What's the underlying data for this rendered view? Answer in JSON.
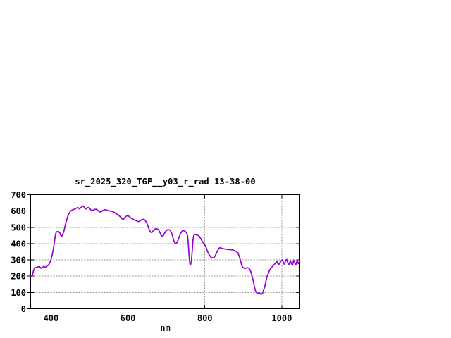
{
  "window": {
    "background": "#ffffff"
  },
  "chart": {
    "colors": {
      "line": "#9400D3",
      "grid": "#909090",
      "axis": "#000000",
      "text": "#000000",
      "background": "#ffffff"
    }
  },
  "chart_data": {
    "type": "line",
    "title": "sr_2025_320_TGF__y03_r_rad 13-38-00",
    "xlabel": "nm",
    "ylabel": "",
    "xlim": [
      347,
      1047
    ],
    "ylim": [
      0,
      700
    ],
    "xticks": [
      400,
      600,
      800,
      1000
    ],
    "yticks": [
      0,
      100,
      200,
      300,
      400,
      500,
      600,
      700
    ],
    "grid": true,
    "legend_position": "none",
    "series": [
      {
        "name": "sr_2025_320_TGF__y03_r_rad",
        "color": "#9400D3",
        "x": [
          347,
          350,
          352,
          355,
          358,
          362,
          366,
          370,
          374,
          378,
          381,
          384,
          387,
          391,
          394,
          397,
          400,
          403,
          406,
          408,
          410,
          412,
          414,
          417,
          420,
          423,
          425,
          428,
          431,
          434,
          437,
          440,
          443,
          446,
          450,
          454,
          458,
          462,
          466,
          470,
          474,
          478,
          481,
          484,
          487,
          490,
          494,
          498,
          502,
          506,
          510,
          514,
          518,
          522,
          526,
          530,
          534,
          538,
          542,
          546,
          550,
          554,
          558,
          562,
          566,
          570,
          574,
          578,
          582,
          585,
          588,
          591,
          594,
          597,
          600,
          604,
          608,
          612,
          616,
          620,
          624,
          628,
          632,
          636,
          640,
          644,
          648,
          652,
          656,
          659,
          662,
          665,
          668,
          671,
          674,
          677,
          680,
          683,
          686,
          689,
          692,
          695,
          698,
          701,
          704,
          707,
          710,
          713,
          716,
          719,
          722,
          725,
          728,
          731,
          734,
          737,
          740,
          743,
          746,
          749,
          752,
          755,
          757,
          759,
          761,
          763,
          765,
          767,
          769,
          771,
          774,
          777,
          780,
          783,
          786,
          789,
          792,
          795,
          798,
          801,
          804,
          807,
          810,
          813,
          816,
          819,
          822,
          825,
          828,
          831,
          834,
          837,
          840,
          843,
          846,
          850,
          854,
          858,
          862,
          866,
          870,
          874,
          878,
          882,
          886,
          890,
          893,
          896,
          899,
          902,
          905,
          908,
          911,
          914,
          917,
          920,
          923,
          926,
          929,
          932,
          935,
          938,
          941,
          944,
          947,
          950,
          953,
          956,
          959,
          962,
          965,
          968,
          971,
          974,
          977,
          980,
          983,
          985,
          988,
          990,
          992,
          995,
          998,
          1001,
          1004,
          1007,
          1010,
          1013,
          1016,
          1019,
          1022,
          1025,
          1028,
          1031,
          1034,
          1037,
          1040,
          1043,
          1047
        ],
        "y": [
          197,
          198,
          212,
          240,
          252,
          253,
          257,
          259,
          248,
          255,
          260,
          254,
          258,
          264,
          272,
          283,
          302,
          332,
          365,
          396,
          432,
          460,
          471,
          475,
          473,
          465,
          452,
          445,
          458,
          482,
          512,
          540,
          563,
          581,
          597,
          605,
          609,
          612,
          618,
          622,
          613,
          621,
          628,
          631,
          621,
          612,
          620,
          622,
          611,
          600,
          606,
          610,
          611,
          603,
          595,
          594,
          602,
          607,
          608,
          604,
          601,
          600,
          598,
          595,
          589,
          582,
          577,
          569,
          559,
          552,
          549,
          557,
          565,
          570,
          571,
          565,
          557,
          551,
          546,
          542,
          538,
          535,
          540,
          547,
          549,
          545,
          531,
          509,
          482,
          470,
          468,
          476,
          485,
          490,
          492,
          489,
          483,
          469,
          452,
          446,
          450,
          463,
          475,
          482,
          486,
          485,
          481,
          469,
          447,
          419,
          403,
          400,
          409,
          426,
          446,
          463,
          474,
          480,
          479,
          475,
          468,
          448,
          398,
          328,
          276,
          271,
          292,
          352,
          421,
          449,
          457,
          455,
          452,
          449,
          443,
          431,
          419,
          407,
          398,
          388,
          371,
          351,
          337,
          325,
          317,
          314,
          312,
          318,
          331,
          346,
          361,
          372,
          375,
          372,
          370,
          368,
          366,
          365,
          364,
          363,
          362,
          360,
          356,
          351,
          344,
          318,
          293,
          266,
          254,
          249,
          247,
          250,
          252,
          249,
          241,
          224,
          199,
          168,
          133,
          109,
          97,
          94,
          100,
          91,
          88,
          96,
          116,
          136,
          172,
          201,
          216,
          236,
          248,
          256,
          263,
          271,
          279,
          286,
          289,
          277,
          269,
          283,
          293,
          301,
          287,
          271,
          296,
          303,
          279,
          271,
          296,
          277,
          267,
          299,
          281,
          271,
          299,
          277,
          291
        ]
      }
    ]
  }
}
